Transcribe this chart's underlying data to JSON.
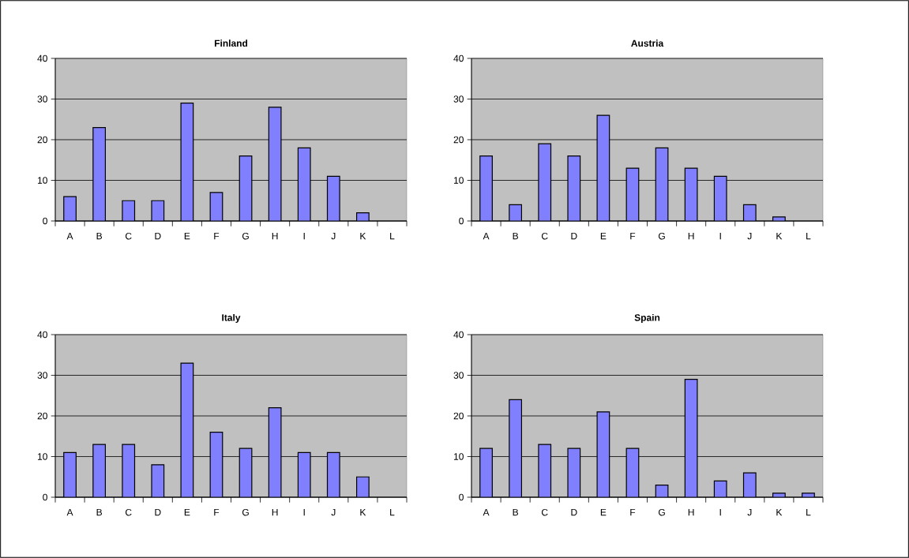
{
  "chart_data": [
    {
      "type": "bar",
      "title": "Finland",
      "categories": [
        "A",
        "B",
        "C",
        "D",
        "E",
        "F",
        "G",
        "H",
        "I",
        "J",
        "K",
        "L"
      ],
      "values": [
        6,
        23,
        5,
        5,
        29,
        7,
        16,
        28,
        18,
        11,
        2,
        null
      ],
      "color": "#8080ff",
      "ylim": [
        0,
        40
      ],
      "yticks": [
        0,
        10,
        20,
        30,
        40
      ],
      "grid": "y"
    },
    {
      "type": "bar",
      "title": "Austria",
      "categories": [
        "A",
        "B",
        "C",
        "D",
        "E",
        "F",
        "G",
        "H",
        "I",
        "J",
        "K",
        "L"
      ],
      "values": [
        16,
        4,
        19,
        16,
        26,
        13,
        18,
        13,
        11,
        4,
        1,
        null
      ],
      "color": "#8080ff",
      "ylim": [
        0,
        40
      ],
      "yticks": [
        0,
        10,
        20,
        30,
        40
      ],
      "grid": "y"
    },
    {
      "type": "bar",
      "title": "Italy",
      "categories": [
        "A",
        "B",
        "C",
        "D",
        "E",
        "F",
        "G",
        "H",
        "I",
        "J",
        "K",
        "L"
      ],
      "values": [
        11,
        13,
        13,
        8,
        33,
        16,
        12,
        22,
        11,
        11,
        5,
        null
      ],
      "color": "#8080ff",
      "ylim": [
        0,
        40
      ],
      "yticks": [
        0,
        10,
        20,
        30,
        40
      ],
      "grid": "y"
    },
    {
      "type": "bar",
      "title": "Spain",
      "categories": [
        "A",
        "B",
        "C",
        "D",
        "E",
        "F",
        "G",
        "H",
        "I",
        "J",
        "K",
        "L"
      ],
      "values": [
        12,
        24,
        13,
        12,
        21,
        12,
        3,
        29,
        4,
        6,
        1,
        1
      ],
      "color": "#8080ff",
      "ylim": [
        0,
        40
      ],
      "yticks": [
        0,
        10,
        20,
        30,
        40
      ],
      "grid": "y"
    }
  ]
}
